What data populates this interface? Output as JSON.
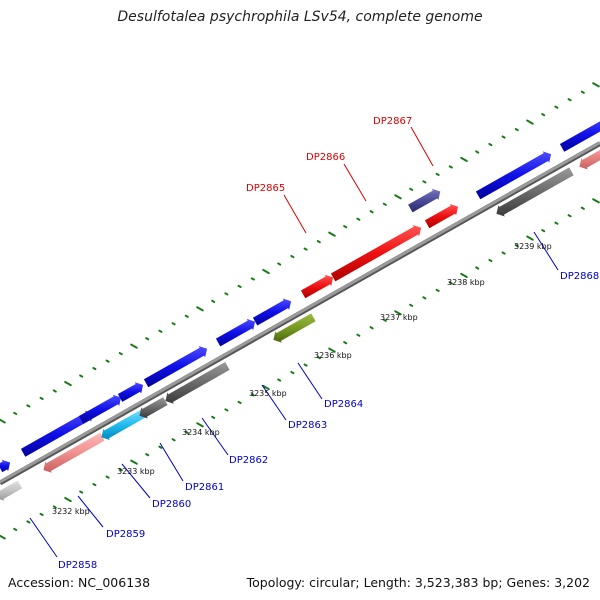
{
  "title": "Desulfotalea psychrophila LSv54, complete genome",
  "accession": "Accession: NC_006138",
  "summary": "Topology: circular; Length: 3,523,383 bp; Genes: 3,202",
  "kbp_labels": [
    "3232 kbp",
    "3233 kbp",
    "3234 kbp",
    "3235 kbp",
    "3236 kbp",
    "3237 kbp",
    "3238 kbp",
    "3239 kbp"
  ],
  "gene_labels": [
    "DP2858",
    "DP2859",
    "DP2860",
    "DP2861",
    "DP2862",
    "DP2863",
    "DP2864",
    "DP2865",
    "DP2866",
    "DP2867",
    "DP2868"
  ],
  "colors": {
    "backbone": "#8a8a8a",
    "forward_gene": "#1010e8",
    "highlight_gene": "#ee1111",
    "rna_gray": "#6a6a6a",
    "pink": "#f09090",
    "cyan": "#22bbee",
    "olive": "#779922",
    "purple": "#4a4a9a",
    "dots": "#1a7a1a"
  }
}
